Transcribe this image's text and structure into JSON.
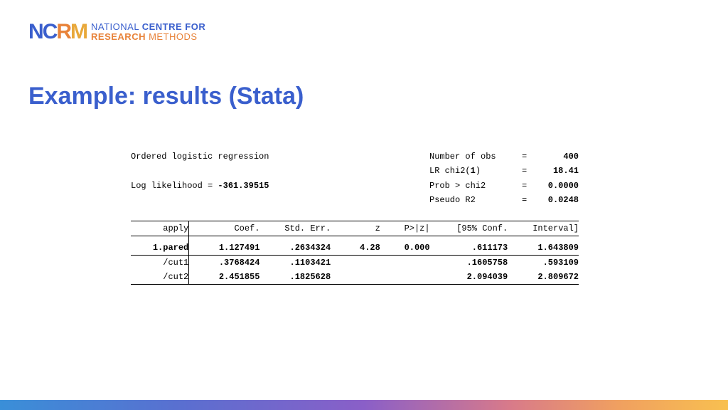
{
  "logo": {
    "n": "N",
    "c": "C",
    "r": "R",
    "m": "M",
    "line1_a": "NATIONAL ",
    "line1_b": "CENTRE FOR",
    "line2_a": "RESEARCH ",
    "line2_b": "METHODS"
  },
  "title": "Example: results (Stata)",
  "stata": {
    "model_label": "Ordered logistic regression",
    "loglik_label": "Log likelihood = ",
    "loglik_value": "-361.39515",
    "stats": {
      "nobs_label": "Number of obs",
      "nobs_value": "400",
      "lrchi_label": "LR chi2(",
      "lrchi_df": "1",
      "lrchi_label2": ")",
      "lrchi_value": "18.41",
      "prob_label": "Prob > chi2",
      "prob_value": "0.0000",
      "pseudo_label": "Pseudo R2",
      "pseudo_value": "0.0248",
      "eq": "="
    },
    "headers": {
      "var": "apply",
      "coef": "Coef.",
      "se": "Std. Err.",
      "z": "z",
      "p": "P>|z|",
      "cil": "[95% Conf.",
      "cih": "Interval]"
    },
    "rows": {
      "pared": {
        "var": "1.pared",
        "coef": "1.127491",
        "se": ".2634324",
        "z": "4.28",
        "p": "0.000",
        "cil": ".611173",
        "cih": "1.643809"
      },
      "cut1": {
        "var": "/cut1",
        "coef": ".3768424",
        "se": ".1103421",
        "cil": ".1605758",
        "cih": ".593109"
      },
      "cut2": {
        "var": "/cut2",
        "coef": "2.451855",
        "se": ".1825628",
        "cil": "2.094039",
        "cih": "2.809672"
      }
    }
  },
  "colors": {
    "title": "#3a5fcd",
    "logo_blue": "#3a5fcd",
    "logo_orange": "#e8833a",
    "background": "#ffffff"
  }
}
